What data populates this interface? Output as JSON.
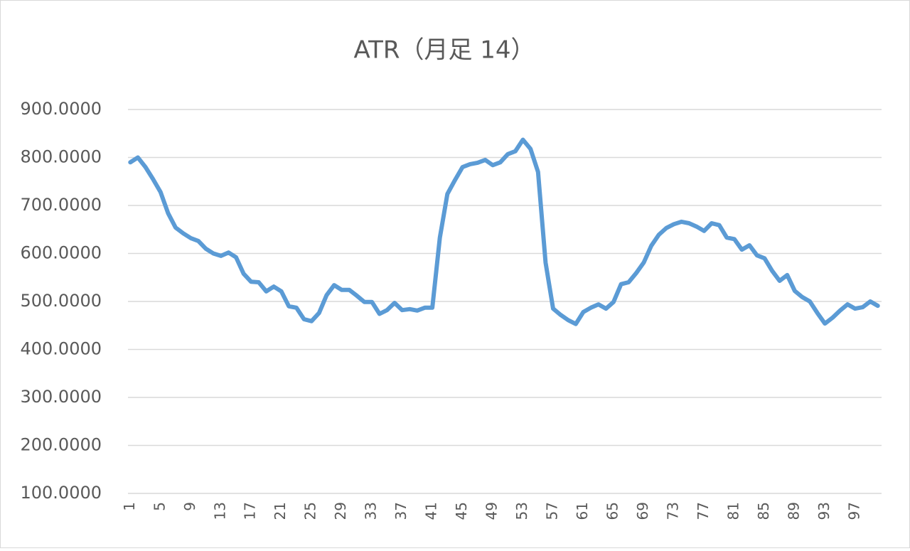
{
  "chart_data": {
    "type": "line",
    "title": "ATR（月足 14）",
    "categories": [
      1,
      null,
      null,
      null,
      5,
      null,
      null,
      null,
      9,
      null,
      null,
      null,
      13,
      null,
      null,
      null,
      17,
      null,
      null,
      null,
      21,
      null,
      null,
      null,
      25,
      null,
      null,
      null,
      29,
      null,
      null,
      null,
      33,
      null,
      null,
      null,
      37,
      null,
      null,
      null,
      41,
      null,
      null,
      null,
      45,
      null,
      null,
      null,
      49,
      null,
      null,
      null,
      53,
      null,
      null,
      null,
      57,
      null,
      null,
      null,
      61,
      null,
      null,
      null,
      65,
      null,
      null,
      null,
      69,
      null,
      null,
      null,
      73,
      null,
      null,
      null,
      77,
      null,
      null,
      null,
      81,
      null,
      null,
      null,
      85,
      null,
      null,
      null,
      89,
      null,
      null,
      null,
      93,
      null,
      null,
      null,
      97,
      null,
      null,
      null
    ],
    "series": [
      {
        "name": "ATR",
        "color": "#5b9bd5",
        "values": [
          790,
          800,
          780,
          755,
          728,
          684,
          654,
          642,
          632,
          626,
          610,
          600,
          595,
          602,
          592,
          558,
          541,
          540,
          521,
          531,
          521,
          490,
          487,
          463,
          459,
          476,
          513,
          534,
          524,
          524,
          512,
          499,
          499,
          474,
          482,
          497,
          482,
          484,
          481,
          487,
          487,
          633,
          724,
          753,
          780,
          786,
          789,
          795,
          784,
          790,
          807,
          813,
          837,
          818,
          770,
          581,
          485,
          472,
          461,
          453,
          478,
          487,
          494,
          485,
          499,
          536,
          540,
          559,
          581,
          616,
          639,
          653,
          661,
          666,
          663,
          656,
          647,
          663,
          659,
          633,
          630,
          608,
          617,
          596,
          590,
          564,
          543,
          555,
          522,
          509,
          500,
          476,
          454,
          466,
          481,
          494,
          485,
          488,
          500,
          491
        ]
      }
    ],
    "ylim": [
      100,
      900
    ],
    "yticks": [
      {
        "value": 100,
        "label": "100.0000"
      },
      {
        "value": 200,
        "label": "200.0000"
      },
      {
        "value": 300,
        "label": "300.0000"
      },
      {
        "value": 400,
        "label": "400.0000"
      },
      {
        "value": 500,
        "label": "500.0000"
      },
      {
        "value": 600,
        "label": "600.0000"
      },
      {
        "value": 700,
        "label": "700.0000"
      },
      {
        "value": 800,
        "label": "800.0000"
      },
      {
        "value": 900,
        "label": "900.0000"
      }
    ],
    "grid": true
  }
}
